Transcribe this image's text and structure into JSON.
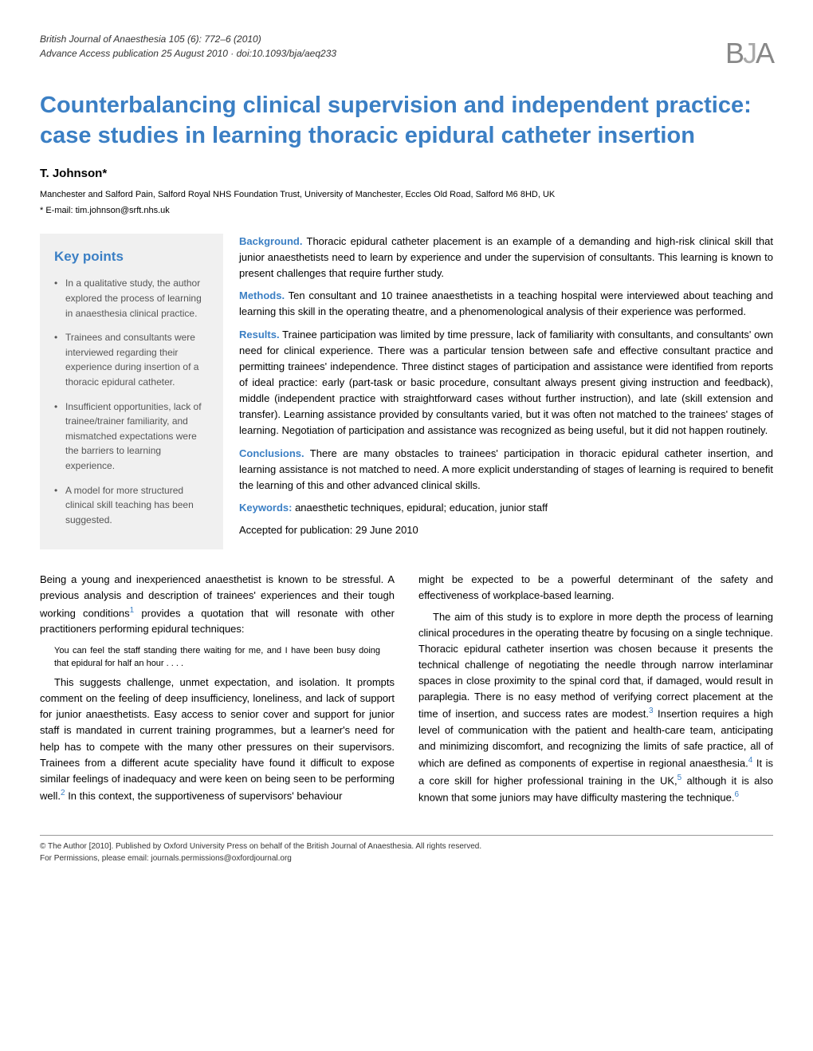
{
  "header": {
    "journal_line1": "British Journal of Anaesthesia 105 (6): 772–6 (2010)",
    "journal_line2": "Advance Access publication 25 August 2010 · doi:10.1093/bja/aeq233",
    "logo_text": "BJA"
  },
  "article": {
    "title": "Counterbalancing clinical supervision and independent practice: case studies in learning thoracic epidural catheter insertion",
    "author": "T. Johnson*",
    "affiliation": "Manchester and Salford Pain, Salford Royal NHS Foundation Trust, University of Manchester, Eccles Old Road, Salford M6 8HD, UK",
    "email_label": "* E-mail: ",
    "email": "tim.johnson@srft.nhs.uk"
  },
  "key_points": {
    "title": "Key points",
    "items": [
      "In a qualitative study, the author explored the process of learning in anaesthesia clinical practice.",
      "Trainees and consultants were interviewed regarding their experience during insertion of a thoracic epidural catheter.",
      "Insufficient opportunities, lack of trainee/trainer familiarity, and mismatched expectations were the barriers to learning experience.",
      "A model for more structured clinical skill teaching has been suggested."
    ]
  },
  "abstract": {
    "background_label": "Background.",
    "background": " Thoracic epidural catheter placement is an example of a demanding and high-risk clinical skill that junior anaesthetists need to learn by experience and under the supervision of consultants. This learning is known to present challenges that require further study.",
    "methods_label": "Methods.",
    "methods": " Ten consultant and 10 trainee anaesthetists in a teaching hospital were interviewed about teaching and learning this skill in the operating theatre, and a phenomenological analysis of their experience was performed.",
    "results_label": "Results.",
    "results": " Trainee participation was limited by time pressure, lack of familiarity with consultants, and consultants' own need for clinical experience. There was a particular tension between safe and effective consultant practice and permitting trainees' independence. Three distinct stages of participation and assistance were identified from reports of ideal practice: early (part-task or basic procedure, consultant always present giving instruction and feedback), middle (independent practice with straightforward cases without further instruction), and late (skill extension and transfer). Learning assistance provided by consultants varied, but it was often not matched to the trainees' stages of learning. Negotiation of participation and assistance was recognized as being useful, but it did not happen routinely.",
    "conclusions_label": "Conclusions.",
    "conclusions": " There are many obstacles to trainees' participation in thoracic epidural catheter insertion, and learning assistance is not matched to need. A more explicit understanding of stages of learning is required to benefit the learning of this and other advanced clinical skills.",
    "keywords_label": "Keywords:",
    "keywords": " anaesthetic techniques, epidural; education, junior staff",
    "accepted": "Accepted for publication: 29 June 2010"
  },
  "body": {
    "col1_p1a": "Being a young and inexperienced anaesthetist is known to be stressful. A previous analysis and description of trainees' experiences and their tough working conditions",
    "col1_p1b": " provides a quotation that will resonate with other practitioners performing epidural techniques:",
    "col1_quote": "You can feel the staff standing there waiting for me, and I have been busy doing that epidural for half an hour . . . .",
    "col1_p2a": "This suggests challenge, unmet expectation, and isolation. It prompts comment on the feeling of deep insufficiency, loneliness, and lack of support for junior anaesthetists. Easy access to senior cover and support for junior staff is mandated in current training programmes, but a learner's need for help has to compete with the many other pressures on their supervisors. Trainees from a different acute speciality have found it difficult to expose similar feelings of inadequacy and were keen on being seen to be performing well.",
    "col1_p2b": " In this context, the supportiveness of supervisors' behaviour",
    "col2_p1": "might be expected to be a powerful determinant of the safety and effectiveness of workplace-based learning.",
    "col2_p2a": "The aim of this study is to explore in more depth the process of learning clinical procedures in the operating theatre by focusing on a single technique. Thoracic epidural catheter insertion was chosen because it presents the technical challenge of negotiating the needle through narrow interlaminar spaces in close proximity to the spinal cord that, if damaged, would result in paraplegia. There is no easy method of verifying correct placement at the time of insertion, and success rates are modest.",
    "col2_p2b": " Insertion requires a high level of communication with the patient and health-care team, anticipating and minimizing discomfort, and recognizing the limits of safe practice, all of which are defined as components of expertise in regional anaesthesia.",
    "col2_p2c": " It is a core skill for higher professional training in the UK,",
    "col2_p2d": " although it is also known that some juniors may have difficulty mastering the technique.",
    "refs": {
      "r1": "1",
      "r2": "2",
      "r3": "3",
      "r4": "4",
      "r5": "5",
      "r6": "6"
    }
  },
  "footer": {
    "line1": "© The Author [2010]. Published by Oxford University Press on behalf of the British Journal of Anaesthesia. All rights reserved.",
    "line2": "For Permissions, please email: journals.permissions@oxfordjournal.org"
  },
  "colors": {
    "accent": "#3b7fc4",
    "text": "#000000",
    "muted": "#555555",
    "box_bg": "#f0f0f0",
    "logo": "#888888"
  },
  "typography": {
    "title_fontsize": 29,
    "body_fontsize": 13,
    "keypoints_fontsize": 12,
    "footer_fontsize": 10,
    "quote_fontsize": 11
  }
}
